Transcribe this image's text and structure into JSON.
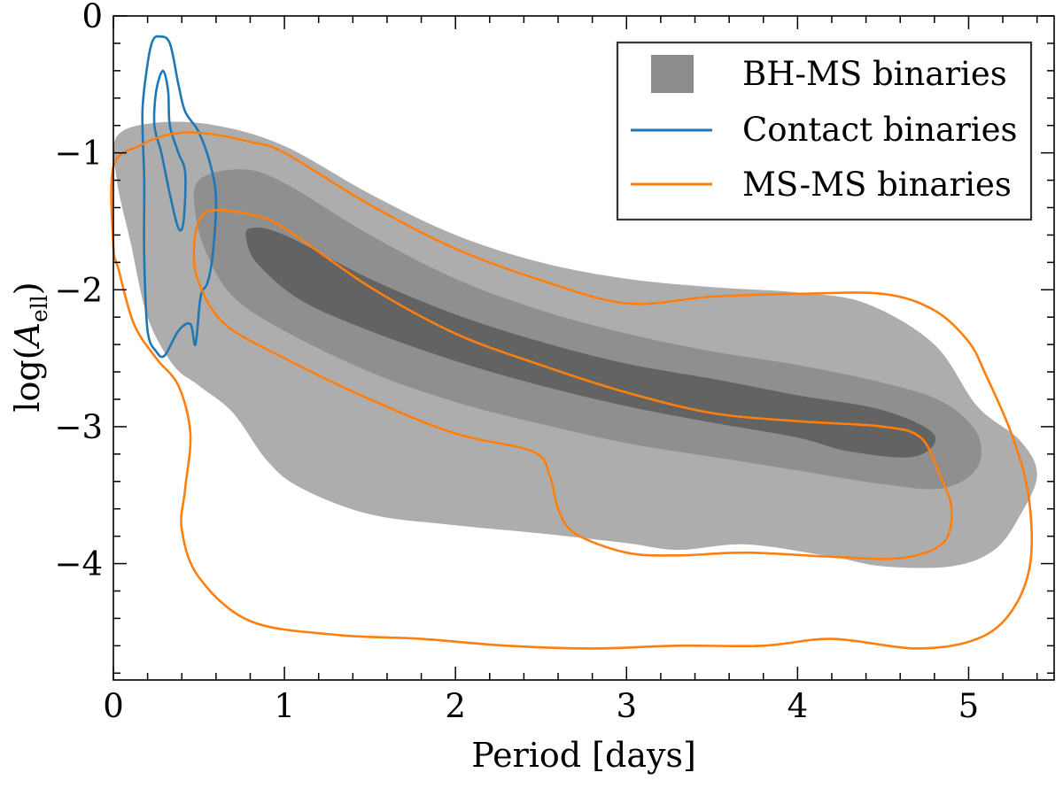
{
  "chart_data": {
    "type": "area",
    "title": "",
    "xlabel": "Period [days]",
    "ylabel": "log(A_ell)",
    "ylabel_parts": {
      "main": "log(",
      "symbol": "A",
      "sub": "ell",
      "close": ")"
    },
    "xlim": [
      0,
      5.5
    ],
    "ylim": [
      -4.85,
      0
    ],
    "x_ticks": [
      0,
      1,
      2,
      3,
      4,
      5
    ],
    "x_tick_labels": [
      "0",
      "1",
      "2",
      "3",
      "4",
      "5"
    ],
    "y_ticks": [
      0,
      -1,
      -2,
      -3,
      -4
    ],
    "y_tick_labels": [
      "0",
      "−1",
      "−2",
      "−3",
      "−4"
    ],
    "x_minor_step": 0.2,
    "y_minor_step": 0.2,
    "grid": false,
    "legend_position": "top-right",
    "legend": [
      {
        "label": "BH-MS binaries",
        "kind": "patch",
        "color": "#8c8c8c"
      },
      {
        "label": "Contact binaries",
        "kind": "line",
        "color": "#1f77b4"
      },
      {
        "label": "MS-MS binaries",
        "kind": "line",
        "color": "#ff7f0e"
      }
    ],
    "series": [
      {
        "name": "BH-MS binaries",
        "kind": "filled_contours",
        "levels": [
          {
            "level": 1,
            "color": "#adadad",
            "points": [
              [
                0.02,
                -0.88
              ],
              [
                0.25,
                -0.78
              ],
              [
                0.6,
                -0.8
              ],
              [
                1.0,
                -0.95
              ],
              [
                1.5,
                -1.3
              ],
              [
                2.0,
                -1.6
              ],
              [
                2.5,
                -1.8
              ],
              [
                3.0,
                -1.92
              ],
              [
                3.5,
                -1.98
              ],
              [
                4.0,
                -2.02
              ],
              [
                4.4,
                -2.1
              ],
              [
                4.8,
                -2.4
              ],
              [
                5.05,
                -2.85
              ],
              [
                5.3,
                -3.1
              ],
              [
                5.4,
                -3.35
              ],
              [
                5.3,
                -3.65
              ],
              [
                5.15,
                -3.9
              ],
              [
                4.9,
                -4.02
              ],
              [
                4.5,
                -4.02
              ],
              [
                4.2,
                -3.95
              ],
              [
                3.7,
                -3.86
              ],
              [
                3.3,
                -3.9
              ],
              [
                3.0,
                -3.85
              ],
              [
                2.5,
                -3.78
              ],
              [
                2.0,
                -3.72
              ],
              [
                1.5,
                -3.64
              ],
              [
                1.1,
                -3.45
              ],
              [
                0.9,
                -3.25
              ],
              [
                0.7,
                -2.9
              ],
              [
                0.5,
                -2.7
              ],
              [
                0.35,
                -2.55
              ],
              [
                0.2,
                -2.2
              ],
              [
                0.1,
                -1.65
              ],
              [
                0.02,
                -1.2
              ]
            ]
          },
          {
            "level": 2,
            "color": "#8f8f8f",
            "points": [
              [
                0.5,
                -1.2
              ],
              [
                0.75,
                -1.12
              ],
              [
                1.0,
                -1.22
              ],
              [
                1.5,
                -1.6
              ],
              [
                2.0,
                -1.92
              ],
              [
                2.5,
                -2.15
              ],
              [
                3.0,
                -2.32
              ],
              [
                3.5,
                -2.45
              ],
              [
                4.0,
                -2.55
              ],
              [
                4.5,
                -2.68
              ],
              [
                4.85,
                -2.82
              ],
              [
                5.05,
                -3.05
              ],
              [
                5.05,
                -3.3
              ],
              [
                4.85,
                -3.45
              ],
              [
                4.5,
                -3.42
              ],
              [
                4.0,
                -3.32
              ],
              [
                3.5,
                -3.22
              ],
              [
                3.0,
                -3.12
              ],
              [
                2.5,
                -2.98
              ],
              [
                2.0,
                -2.82
              ],
              [
                1.5,
                -2.6
              ],
              [
                1.0,
                -2.3
              ],
              [
                0.7,
                -2.05
              ],
              [
                0.55,
                -1.75
              ],
              [
                0.48,
                -1.45
              ]
            ]
          },
          {
            "level": 3,
            "color": "#636363",
            "points": [
              [
                0.8,
                -1.55
              ],
              [
                1.0,
                -1.6
              ],
              [
                1.5,
                -1.92
              ],
              [
                2.0,
                -2.18
              ],
              [
                2.5,
                -2.38
              ],
              [
                3.0,
                -2.54
              ],
              [
                3.5,
                -2.65
              ],
              [
                4.0,
                -2.77
              ],
              [
                4.5,
                -2.88
              ],
              [
                4.8,
                -3.06
              ],
              [
                4.68,
                -3.22
              ],
              [
                4.3,
                -3.18
              ],
              [
                4.0,
                -3.08
              ],
              [
                3.5,
                -2.97
              ],
              [
                3.0,
                -2.85
              ],
              [
                2.5,
                -2.7
              ],
              [
                2.0,
                -2.52
              ],
              [
                1.5,
                -2.3
              ],
              [
                1.1,
                -2.08
              ],
              [
                0.85,
                -1.82
              ],
              [
                0.78,
                -1.65
              ]
            ]
          }
        ]
      },
      {
        "name": "Contact binaries",
        "kind": "line_contours",
        "color": "#1f77b4",
        "contours": [
          [
            [
              0.27,
              -0.15
            ],
            [
              0.33,
              -0.2
            ],
            [
              0.38,
              -0.5
            ],
            [
              0.42,
              -0.7
            ],
            [
              0.5,
              -0.85
            ],
            [
              0.57,
              -1.1
            ],
            [
              0.6,
              -1.35
            ],
            [
              0.58,
              -1.75
            ],
            [
              0.55,
              -1.95
            ],
            [
              0.51,
              -2.05
            ],
            [
              0.48,
              -2.4
            ],
            [
              0.45,
              -2.25
            ],
            [
              0.38,
              -2.3
            ],
            [
              0.3,
              -2.48
            ],
            [
              0.25,
              -2.45
            ],
            [
              0.2,
              -2.3
            ],
            [
              0.18,
              -1.75
            ],
            [
              0.18,
              -1.2
            ],
            [
              0.17,
              -0.7
            ],
            [
              0.2,
              -0.35
            ],
            [
              0.23,
              -0.18
            ]
          ],
          [
            [
              0.29,
              -0.4
            ],
            [
              0.32,
              -0.55
            ],
            [
              0.33,
              -0.8
            ],
            [
              0.38,
              -1.0
            ],
            [
              0.42,
              -1.15
            ],
            [
              0.41,
              -1.5
            ],
            [
              0.38,
              -1.55
            ],
            [
              0.33,
              -1.3
            ],
            [
              0.28,
              -1.0
            ],
            [
              0.24,
              -0.8
            ],
            [
              0.25,
              -0.55
            ]
          ]
        ]
      },
      {
        "name": "MS-MS binaries",
        "kind": "line_contours",
        "color": "#ff7f0e",
        "contours": [
          [
            [
              0.0,
              -1.1
            ],
            [
              0.15,
              -0.95
            ],
            [
              0.35,
              -0.86
            ],
            [
              0.55,
              -0.86
            ],
            [
              0.8,
              -0.92
            ],
            [
              1.0,
              -1.0
            ],
            [
              1.5,
              -1.38
            ],
            [
              2.0,
              -1.7
            ],
            [
              2.5,
              -1.93
            ],
            [
              3.0,
              -2.1
            ],
            [
              3.5,
              -2.05
            ],
            [
              4.0,
              -2.03
            ],
            [
              4.5,
              -2.03
            ],
            [
              4.8,
              -2.15
            ],
            [
              5.0,
              -2.38
            ],
            [
              5.1,
              -2.62
            ],
            [
              5.25,
              -3.05
            ],
            [
              5.35,
              -3.5
            ],
            [
              5.36,
              -4.0
            ],
            [
              5.25,
              -4.35
            ],
            [
              5.05,
              -4.55
            ],
            [
              4.7,
              -4.62
            ],
            [
              4.2,
              -4.55
            ],
            [
              3.8,
              -4.6
            ],
            [
              3.3,
              -4.6
            ],
            [
              2.8,
              -4.62
            ],
            [
              2.3,
              -4.6
            ],
            [
              1.8,
              -4.55
            ],
            [
              1.3,
              -4.52
            ],
            [
              0.8,
              -4.42
            ],
            [
              0.5,
              -4.1
            ],
            [
              0.4,
              -3.75
            ],
            [
              0.42,
              -3.45
            ],
            [
              0.45,
              -3.05
            ],
            [
              0.38,
              -2.7
            ],
            [
              0.25,
              -2.5
            ],
            [
              0.12,
              -2.25
            ],
            [
              0.03,
              -1.85
            ],
            [
              0.0,
              -1.68
            ]
          ],
          [
            [
              0.5,
              -1.5
            ],
            [
              0.58,
              -1.42
            ],
            [
              0.8,
              -1.45
            ],
            [
              1.0,
              -1.55
            ],
            [
              1.5,
              -1.98
            ],
            [
              2.0,
              -2.32
            ],
            [
              2.5,
              -2.55
            ],
            [
              3.0,
              -2.75
            ],
            [
              3.5,
              -2.9
            ],
            [
              4.0,
              -2.96
            ],
            [
              4.5,
              -3.0
            ],
            [
              4.72,
              -3.08
            ],
            [
              4.83,
              -3.35
            ],
            [
              4.9,
              -3.6
            ],
            [
              4.85,
              -3.85
            ],
            [
              4.6,
              -3.96
            ],
            [
              4.2,
              -3.95
            ],
            [
              3.7,
              -3.92
            ],
            [
              3.3,
              -3.94
            ],
            [
              3.0,
              -3.92
            ],
            [
              2.7,
              -3.78
            ],
            [
              2.6,
              -3.6
            ],
            [
              2.55,
              -3.35
            ],
            [
              2.45,
              -3.18
            ],
            [
              2.0,
              -3.05
            ],
            [
              1.5,
              -2.8
            ],
            [
              1.0,
              -2.5
            ],
            [
              0.65,
              -2.25
            ],
            [
              0.5,
              -1.95
            ],
            [
              0.47,
              -1.72
            ]
          ]
        ]
      }
    ]
  }
}
